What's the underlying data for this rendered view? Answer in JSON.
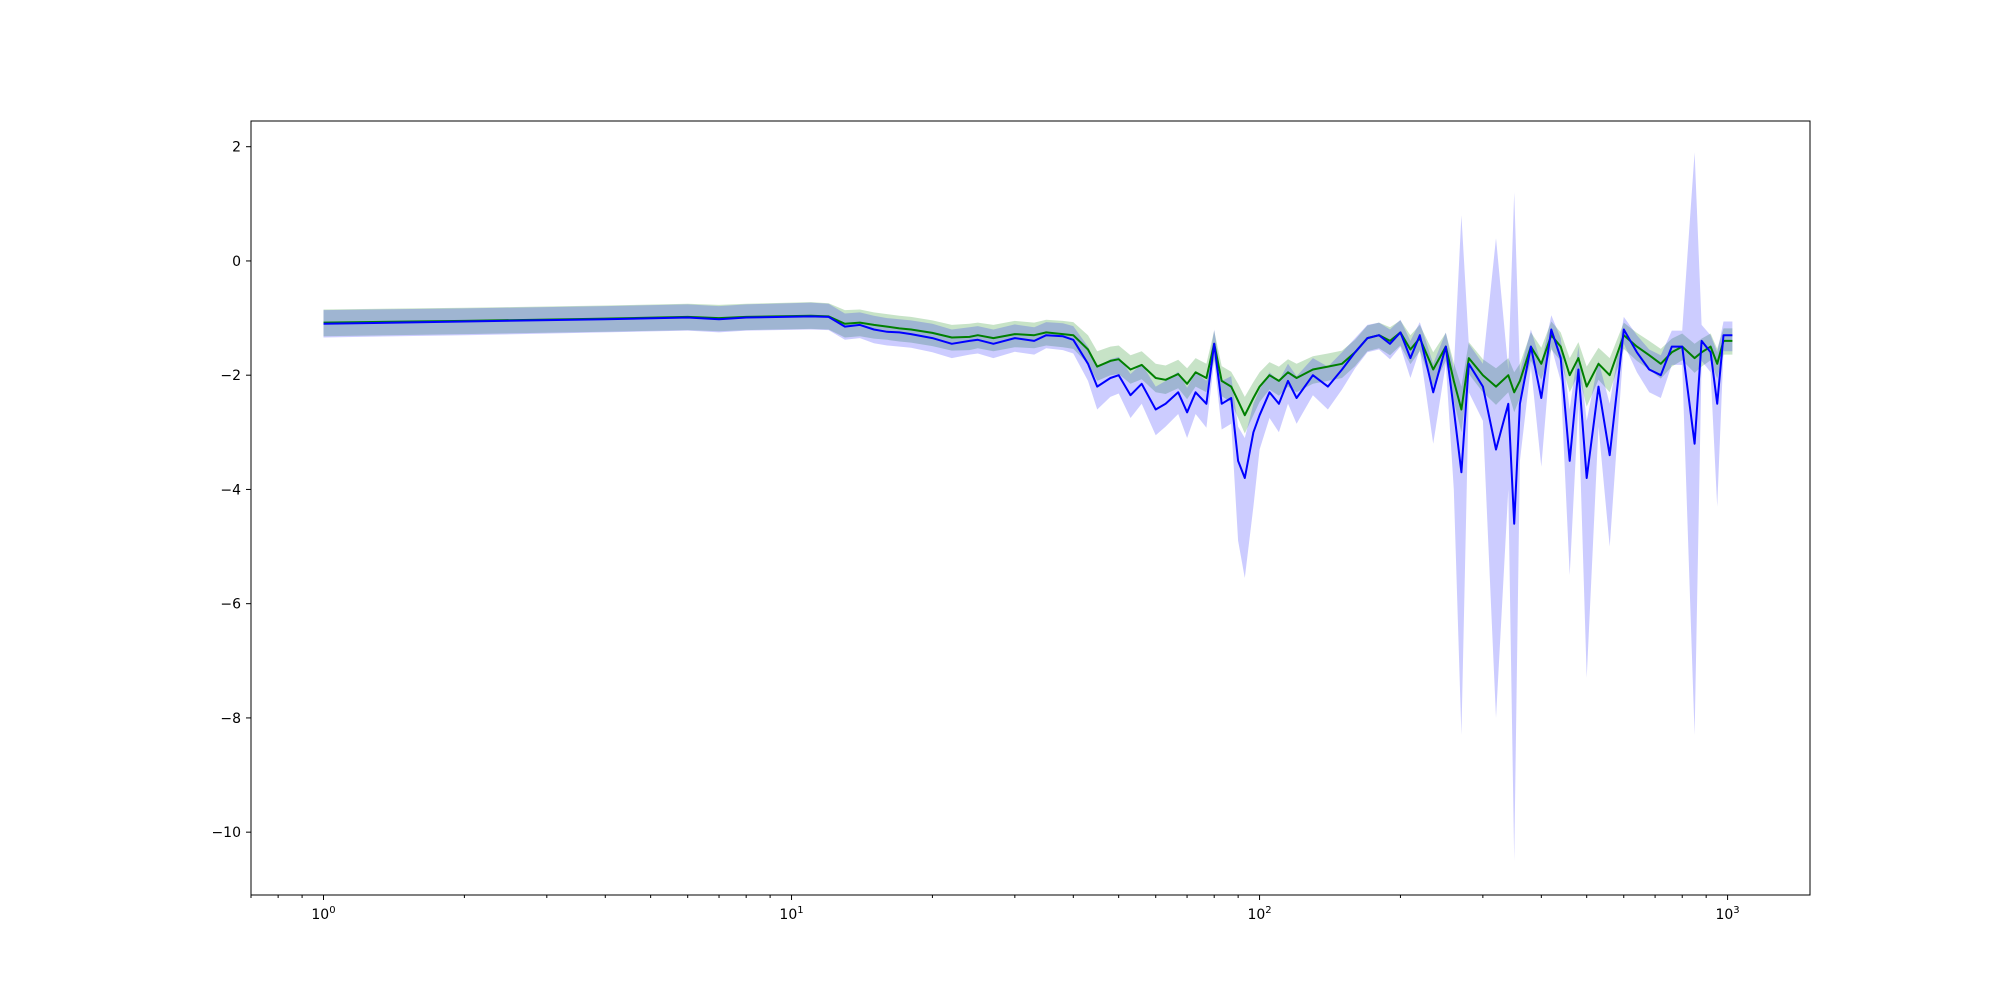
{
  "chart_data": {
    "type": "line",
    "title": "",
    "xlabel": "",
    "ylabel": "",
    "x_scale": "log",
    "xlim": [
      0.7,
      1500
    ],
    "ylim": [
      -11.1,
      2.45
    ],
    "grid": false,
    "legend": "none",
    "y_ticks": [
      2,
      0,
      -2,
      -4,
      -6,
      -8,
      -10
    ],
    "y_tick_labels": [
      "2",
      "0",
      "−2",
      "−4",
      "−6",
      "−8",
      "−10"
    ],
    "x_ticks": [
      1,
      10,
      100,
      1000
    ],
    "x_tick_labels": [
      {
        "base": "10",
        "exp": "0"
      },
      {
        "base": "10",
        "exp": "1"
      },
      {
        "base": "10",
        "exp": "2"
      },
      {
        "base": "10",
        "exp": "3"
      }
    ],
    "series": [
      {
        "color": "#008000",
        "band_color": "#008000",
        "band_opacity": 0.22,
        "points": [
          [
            1,
            -1.08,
            -0.85,
            -1.32
          ],
          [
            2,
            -1.05,
            -0.82,
            -1.28
          ],
          [
            4,
            -1.01,
            -0.78,
            -1.24
          ],
          [
            6,
            -0.98,
            -0.75,
            -1.21
          ],
          [
            7,
            -1.0,
            -0.77,
            -1.23
          ],
          [
            8,
            -0.98,
            -0.75,
            -1.21
          ],
          [
            11,
            -0.96,
            -0.72,
            -1.19
          ],
          [
            12,
            -0.97,
            -0.74,
            -1.2
          ],
          [
            13,
            -1.1,
            -0.86,
            -1.34
          ],
          [
            14,
            -1.08,
            -0.85,
            -1.32
          ],
          [
            15,
            -1.12,
            -0.9,
            -1.36
          ],
          [
            16,
            -1.15,
            -0.93,
            -1.38
          ],
          [
            17,
            -1.18,
            -0.96,
            -1.41
          ],
          [
            18,
            -1.2,
            -0.98,
            -1.43
          ],
          [
            20,
            -1.26,
            -1.04,
            -1.49
          ],
          [
            22,
            -1.34,
            -1.12,
            -1.57
          ],
          [
            24,
            -1.33,
            -1.1,
            -1.56
          ],
          [
            25,
            -1.3,
            -1.08,
            -1.53
          ],
          [
            27,
            -1.35,
            -1.12,
            -1.58
          ],
          [
            30,
            -1.28,
            -1.05,
            -1.51
          ],
          [
            33,
            -1.3,
            -1.08,
            -1.53
          ],
          [
            35,
            -1.25,
            -1.03,
            -1.48
          ],
          [
            38,
            -1.28,
            -1.05,
            -1.51
          ],
          [
            40,
            -1.3,
            -1.07,
            -1.54
          ],
          [
            43,
            -1.55,
            -1.3,
            -1.8
          ],
          [
            45,
            -1.85,
            -1.58,
            -2.1
          ],
          [
            48,
            -1.75,
            -1.5,
            -2.0
          ],
          [
            50,
            -1.72,
            -1.48,
            -1.98
          ],
          [
            53,
            -1.9,
            -1.65,
            -2.15
          ],
          [
            56,
            -1.82,
            -1.58,
            -2.07
          ],
          [
            60,
            -2.05,
            -1.8,
            -2.3
          ],
          [
            63,
            -2.08,
            -1.83,
            -2.33
          ],
          [
            67,
            -1.98,
            -1.73,
            -2.23
          ],
          [
            70,
            -2.15,
            -1.88,
            -2.42
          ],
          [
            73,
            -1.95,
            -1.7,
            -2.2
          ],
          [
            77,
            -2.05,
            -1.8,
            -2.3
          ],
          [
            80,
            -1.45,
            -1.22,
            -1.72
          ],
          [
            83,
            -2.1,
            -1.84,
            -2.37
          ],
          [
            87,
            -2.2,
            -1.94,
            -2.47
          ],
          [
            90,
            -2.45,
            -2.15,
            -2.75
          ],
          [
            93,
            -2.7,
            -2.38,
            -3.02
          ],
          [
            97,
            -2.4,
            -2.12,
            -2.7
          ],
          [
            100,
            -2.2,
            -1.95,
            -2.47
          ],
          [
            105,
            -2.0,
            -1.77,
            -2.25
          ],
          [
            110,
            -2.1,
            -1.85,
            -2.36
          ],
          [
            115,
            -1.95,
            -1.72,
            -2.2
          ],
          [
            120,
            -2.05,
            -1.8,
            -2.3
          ],
          [
            130,
            -1.9,
            -1.67,
            -2.15
          ],
          [
            140,
            -1.85,
            -1.62,
            -2.1
          ],
          [
            150,
            -1.8,
            -1.57,
            -2.05
          ],
          [
            160,
            -1.6,
            -1.38,
            -1.84
          ],
          [
            170,
            -1.35,
            -1.13,
            -1.58
          ],
          [
            180,
            -1.3,
            -1.08,
            -1.53
          ],
          [
            190,
            -1.4,
            -1.16,
            -1.65
          ],
          [
            200,
            -1.25,
            -1.04,
            -1.48
          ],
          [
            210,
            -1.55,
            -1.3,
            -1.81
          ],
          [
            220,
            -1.35,
            -1.12,
            -1.58
          ],
          [
            235,
            -1.9,
            -1.6,
            -2.2
          ],
          [
            250,
            -1.5,
            -1.26,
            -1.75
          ],
          [
            260,
            -2.1,
            -1.78,
            -2.45
          ],
          [
            270,
            -2.6,
            -2.2,
            -3.0
          ],
          [
            280,
            -1.7,
            -1.42,
            -1.98
          ],
          [
            300,
            -2.0,
            -1.72,
            -2.3
          ],
          [
            320,
            -2.2,
            -1.88,
            -2.52
          ],
          [
            340,
            -2.0,
            -1.7,
            -2.3
          ],
          [
            350,
            -2.3,
            -1.95,
            -2.65
          ],
          [
            360,
            -2.1,
            -1.8,
            -2.4
          ],
          [
            380,
            -1.5,
            -1.25,
            -1.75
          ],
          [
            400,
            -1.8,
            -1.52,
            -2.08
          ],
          [
            420,
            -1.3,
            -1.06,
            -1.55
          ],
          [
            440,
            -1.5,
            -1.25,
            -1.75
          ],
          [
            460,
            -2.0,
            -1.7,
            -2.3
          ],
          [
            480,
            -1.7,
            -1.42,
            -1.98
          ],
          [
            500,
            -2.2,
            -1.85,
            -2.55
          ],
          [
            530,
            -1.8,
            -1.52,
            -2.08
          ],
          [
            560,
            -2.0,
            -1.7,
            -2.3
          ],
          [
            600,
            -1.3,
            -1.08,
            -1.54
          ],
          [
            640,
            -1.5,
            -1.26,
            -1.75
          ],
          [
            680,
            -1.65,
            -1.4,
            -1.9
          ],
          [
            720,
            -1.8,
            -1.54,
            -2.06
          ],
          [
            760,
            -1.6,
            -1.36,
            -1.85
          ],
          [
            800,
            -1.5,
            -1.27,
            -1.74
          ],
          [
            850,
            -1.7,
            -1.45,
            -1.96
          ],
          [
            880,
            -1.6,
            -1.36,
            -1.85
          ],
          [
            920,
            -1.5,
            -1.27,
            -1.74
          ],
          [
            950,
            -1.8,
            -1.54,
            -2.06
          ],
          [
            980,
            -1.4,
            -1.18,
            -1.64
          ],
          [
            1024,
            -1.4,
            -1.18,
            -1.64
          ]
        ]
      },
      {
        "color": "#0000ff",
        "band_color": "#0000ff",
        "band_opacity": 0.2,
        "points": [
          [
            1,
            -1.1,
            -0.86,
            -1.34
          ],
          [
            2,
            -1.06,
            -0.83,
            -1.3
          ],
          [
            4,
            -1.02,
            -0.79,
            -1.25
          ],
          [
            6,
            -0.99,
            -0.76,
            -1.22
          ],
          [
            7,
            -1.02,
            -0.79,
            -1.25
          ],
          [
            8,
            -0.99,
            -0.76,
            -1.22
          ],
          [
            11,
            -0.97,
            -0.73,
            -1.2
          ],
          [
            12,
            -0.98,
            -0.75,
            -1.21
          ],
          [
            13,
            -1.15,
            -0.92,
            -1.38
          ],
          [
            14,
            -1.12,
            -0.9,
            -1.35
          ],
          [
            15,
            -1.2,
            -0.96,
            -1.44
          ],
          [
            16,
            -1.24,
            -1.0,
            -1.48
          ],
          [
            17,
            -1.25,
            -1.02,
            -1.5
          ],
          [
            18,
            -1.28,
            -1.04,
            -1.52
          ],
          [
            20,
            -1.35,
            -1.1,
            -1.6
          ],
          [
            22,
            -1.45,
            -1.2,
            -1.7
          ],
          [
            24,
            -1.4,
            -1.16,
            -1.64
          ],
          [
            25,
            -1.38,
            -1.14,
            -1.62
          ],
          [
            27,
            -1.45,
            -1.2,
            -1.7
          ],
          [
            30,
            -1.35,
            -1.11,
            -1.59
          ],
          [
            33,
            -1.4,
            -1.16,
            -1.64
          ],
          [
            35,
            -1.3,
            -1.07,
            -1.53
          ],
          [
            38,
            -1.32,
            -1.09,
            -1.56
          ],
          [
            40,
            -1.38,
            -1.14,
            -1.62
          ],
          [
            43,
            -1.8,
            -1.5,
            -2.1
          ],
          [
            45,
            -2.2,
            -1.85,
            -2.6
          ],
          [
            48,
            -2.05,
            -1.72,
            -2.38
          ],
          [
            50,
            -2.0,
            -1.68,
            -2.32
          ],
          [
            53,
            -2.35,
            -1.98,
            -2.75
          ],
          [
            56,
            -2.15,
            -1.8,
            -2.5
          ],
          [
            60,
            -2.6,
            -2.2,
            -3.05
          ],
          [
            63,
            -2.5,
            -2.1,
            -2.9
          ],
          [
            67,
            -2.3,
            -1.94,
            -2.68
          ],
          [
            70,
            -2.65,
            -2.22,
            -3.1
          ],
          [
            73,
            -2.3,
            -1.95,
            -2.68
          ],
          [
            77,
            -2.5,
            -2.1,
            -2.92
          ],
          [
            80,
            -1.45,
            -1.2,
            -1.75
          ],
          [
            83,
            -2.5,
            -2.1,
            -2.95
          ],
          [
            87,
            -2.4,
            -2.02,
            -2.85
          ],
          [
            90,
            -3.5,
            -2.9,
            -4.9
          ],
          [
            93,
            -3.8,
            -3.1,
            -5.55
          ],
          [
            97,
            -3.0,
            -2.5,
            -4.3
          ],
          [
            100,
            -2.7,
            -2.25,
            -3.3
          ],
          [
            105,
            -2.3,
            -1.95,
            -2.75
          ],
          [
            110,
            -2.5,
            -2.1,
            -3.0
          ],
          [
            115,
            -2.1,
            -1.8,
            -2.5
          ],
          [
            120,
            -2.4,
            -2.02,
            -2.85
          ],
          [
            130,
            -2.0,
            -1.7,
            -2.35
          ],
          [
            140,
            -2.2,
            -1.85,
            -2.6
          ],
          [
            150,
            -1.9,
            -1.6,
            -2.25
          ],
          [
            160,
            -1.6,
            -1.35,
            -1.88
          ],
          [
            170,
            -1.35,
            -1.12,
            -1.6
          ],
          [
            180,
            -1.3,
            -1.08,
            -1.55
          ],
          [
            190,
            -1.45,
            -1.2,
            -1.72
          ],
          [
            200,
            -1.25,
            -1.03,
            -1.5
          ],
          [
            210,
            -1.7,
            -1.4,
            -2.05
          ],
          [
            220,
            -1.3,
            -1.07,
            -1.55
          ],
          [
            235,
            -2.3,
            -1.8,
            -3.2
          ],
          [
            250,
            -1.5,
            -1.25,
            -1.8
          ],
          [
            260,
            -2.6,
            -1.9,
            -4.0
          ],
          [
            270,
            -3.7,
            0.8,
            -8.3
          ],
          [
            280,
            -1.8,
            -1.45,
            -2.3
          ],
          [
            300,
            -2.2,
            -1.8,
            -2.8
          ],
          [
            320,
            -3.3,
            0.4,
            -8.0
          ],
          [
            340,
            -2.5,
            -1.9,
            -4.0
          ],
          [
            350,
            -4.6,
            1.2,
            -10.5
          ],
          [
            360,
            -2.5,
            -1.95,
            -3.5
          ],
          [
            380,
            -1.5,
            -1.2,
            -1.85
          ],
          [
            400,
            -2.4,
            -1.8,
            -3.6
          ],
          [
            420,
            -1.2,
            -0.95,
            -1.5
          ],
          [
            440,
            -1.7,
            -1.35,
            -2.1
          ],
          [
            460,
            -3.5,
            -2.6,
            -5.5
          ],
          [
            480,
            -1.9,
            -1.5,
            -2.5
          ],
          [
            500,
            -3.8,
            -2.8,
            -7.3
          ],
          [
            530,
            -2.2,
            -1.75,
            -2.9
          ],
          [
            560,
            -3.4,
            -2.5,
            -5.0
          ],
          [
            600,
            -1.2,
            -0.98,
            -1.45
          ],
          [
            640,
            -1.6,
            -1.3,
            -1.95
          ],
          [
            680,
            -1.9,
            -1.55,
            -2.3
          ],
          [
            720,
            -2.0,
            -1.65,
            -2.4
          ],
          [
            760,
            -1.5,
            -1.22,
            -1.82
          ],
          [
            800,
            -1.5,
            -1.22,
            -1.82
          ],
          [
            850,
            -3.2,
            1.9,
            -8.3
          ],
          [
            880,
            -1.4,
            -1.12,
            -1.75
          ],
          [
            920,
            -1.6,
            -1.3,
            -1.95
          ],
          [
            950,
            -2.5,
            -1.6,
            -4.3
          ],
          [
            980,
            -1.3,
            -1.06,
            -1.58
          ],
          [
            1024,
            -1.3,
            -1.06,
            -1.58
          ]
        ]
      }
    ]
  }
}
